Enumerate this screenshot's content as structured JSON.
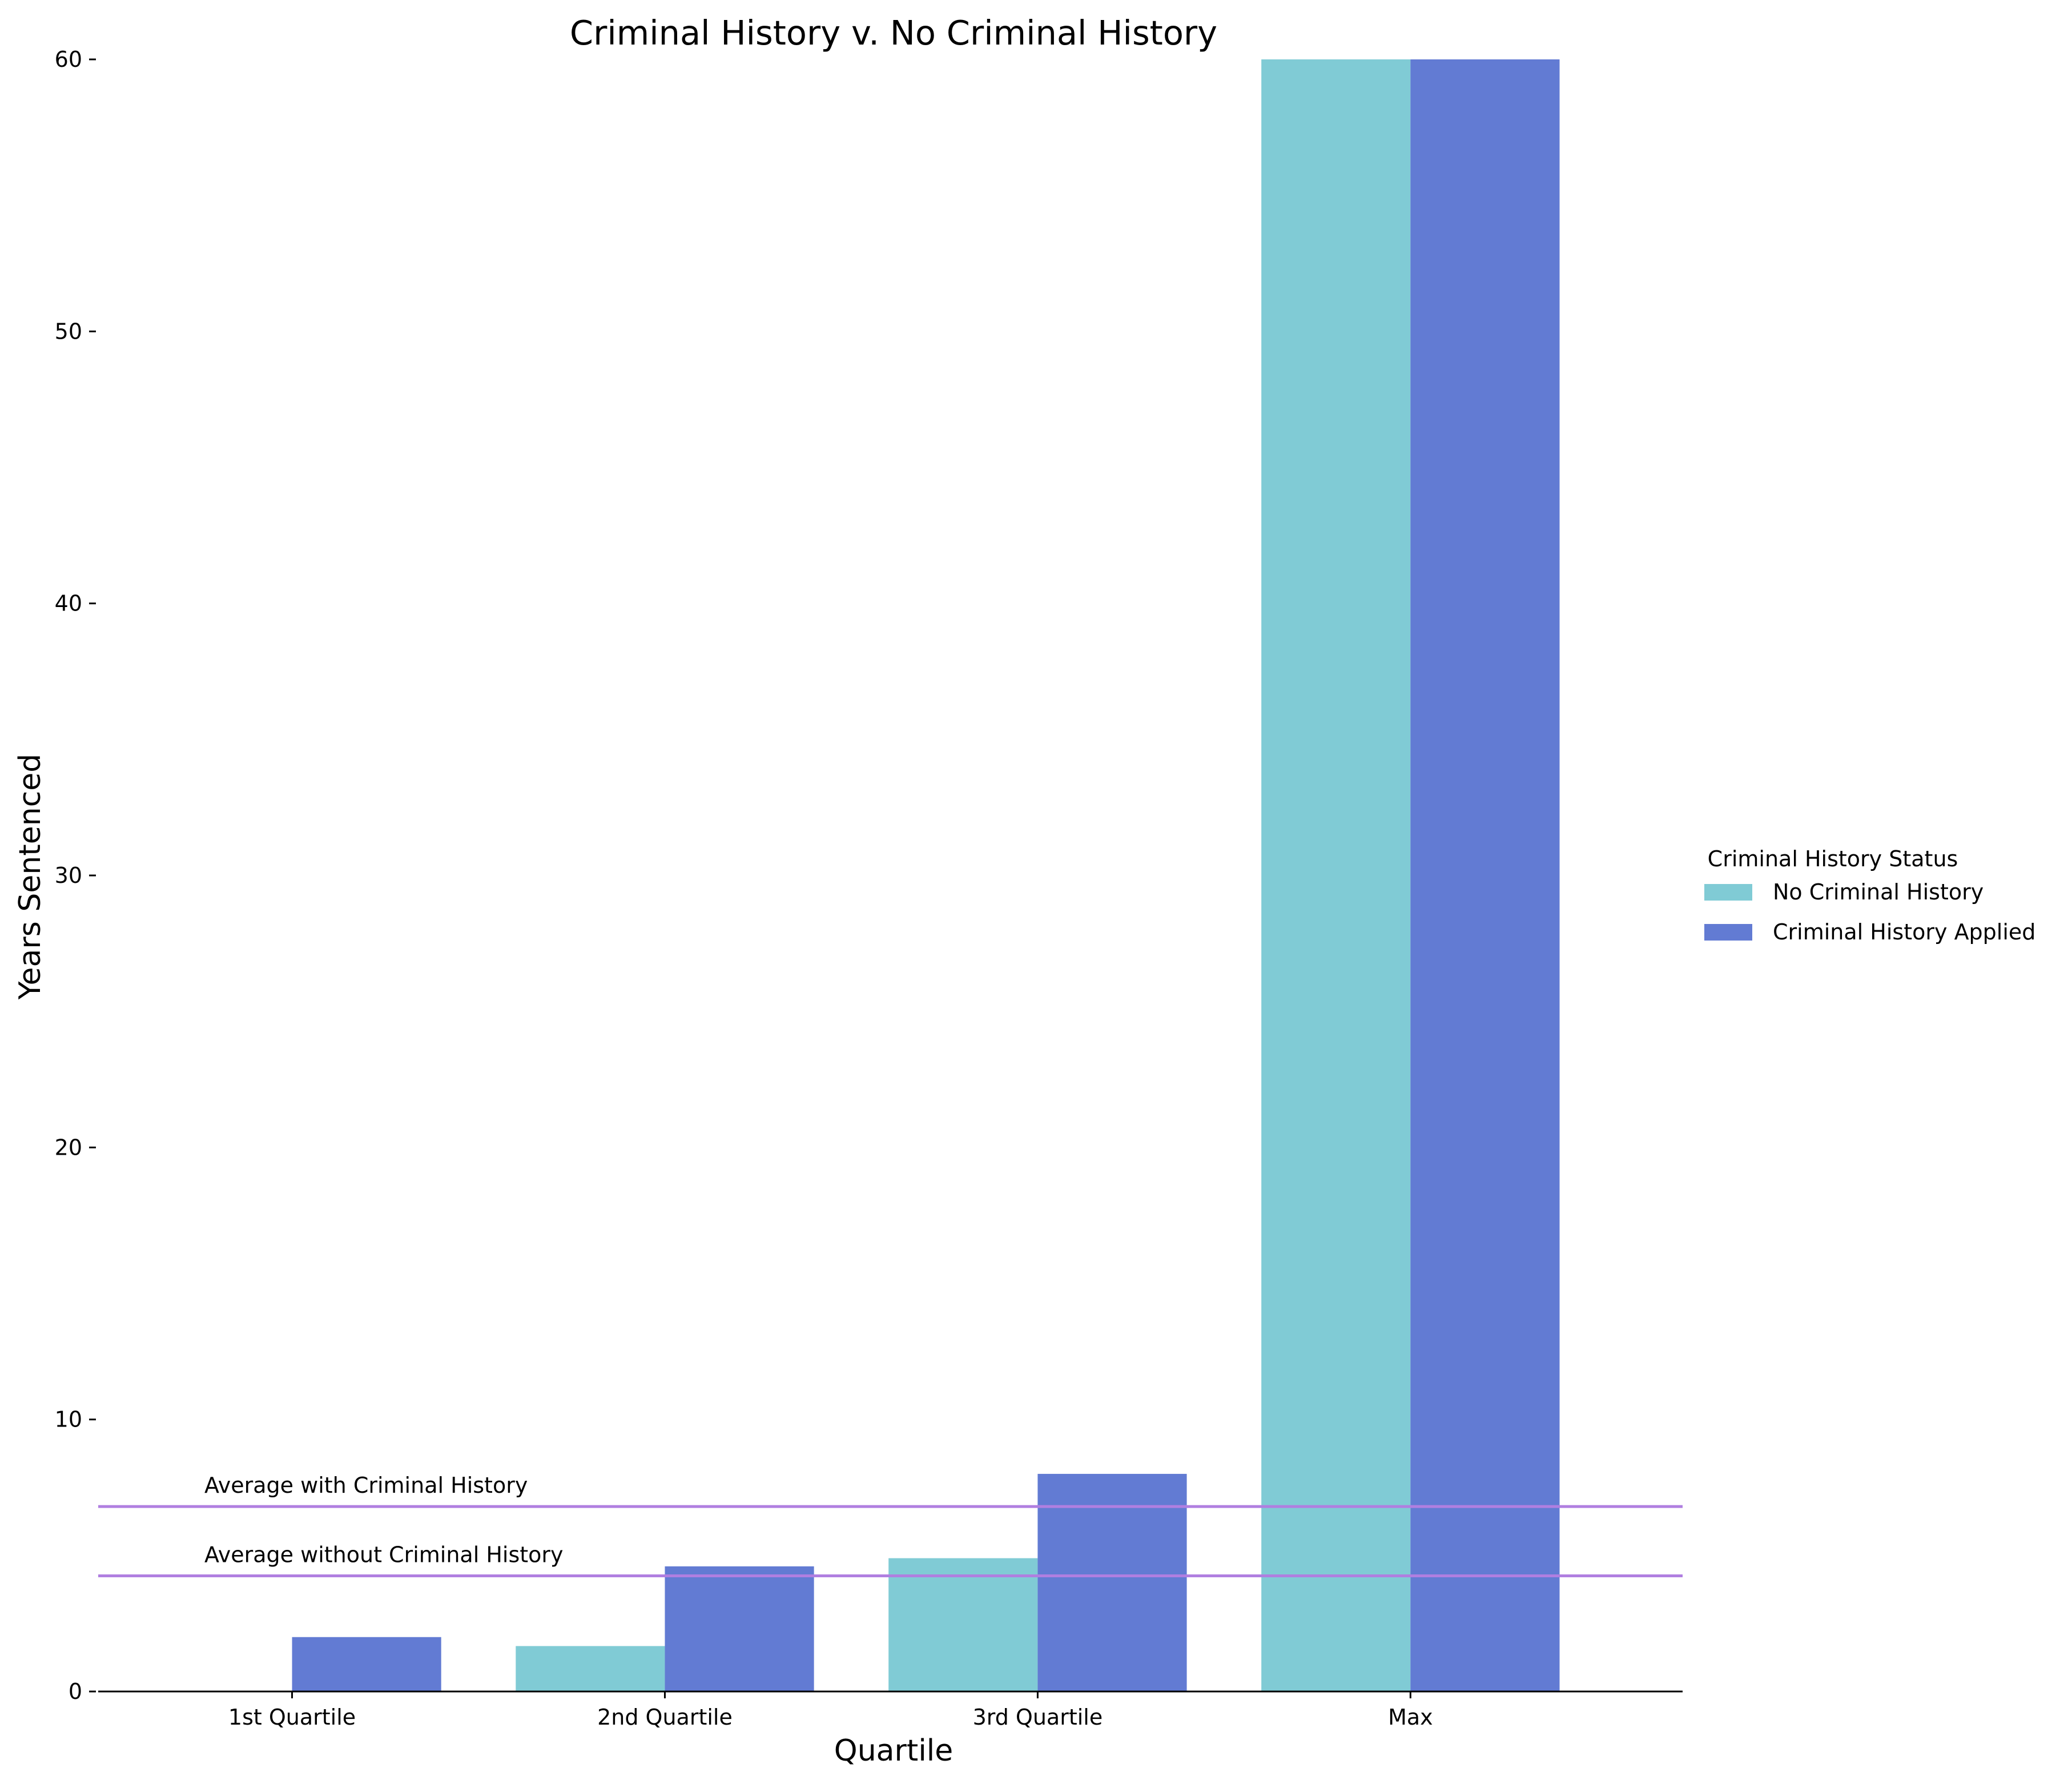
{
  "chart_data": {
    "type": "bar",
    "title": "Criminal History v. No Criminal History",
    "xlabel": "Quartile",
    "ylabel": "Years Sentenced",
    "categories": [
      "1st Quartile",
      "2nd Quartile",
      "3rd Quartile",
      "Max"
    ],
    "series": [
      {
        "name": "No Criminal History",
        "color": "#80cbd5",
        "values": [
          0,
          1.67,
          4.9,
          60
        ]
      },
      {
        "name": "Criminal History Applied",
        "color": "#627bd3",
        "values": [
          2,
          4.6,
          8,
          60
        ]
      }
    ],
    "ylim": [
      0,
      60
    ],
    "yticks": [
      0,
      10,
      20,
      30,
      40,
      50,
      60
    ],
    "grid": false,
    "legend": {
      "title": "Criminal History Status",
      "placement": "center-right"
    },
    "reference_lines": [
      {
        "label": "Average with Criminal History",
        "value": 6.8,
        "color": "#b07fe0"
      },
      {
        "label": "Average without Criminal History",
        "value": 4.25,
        "color": "#b07fe0"
      }
    ]
  }
}
